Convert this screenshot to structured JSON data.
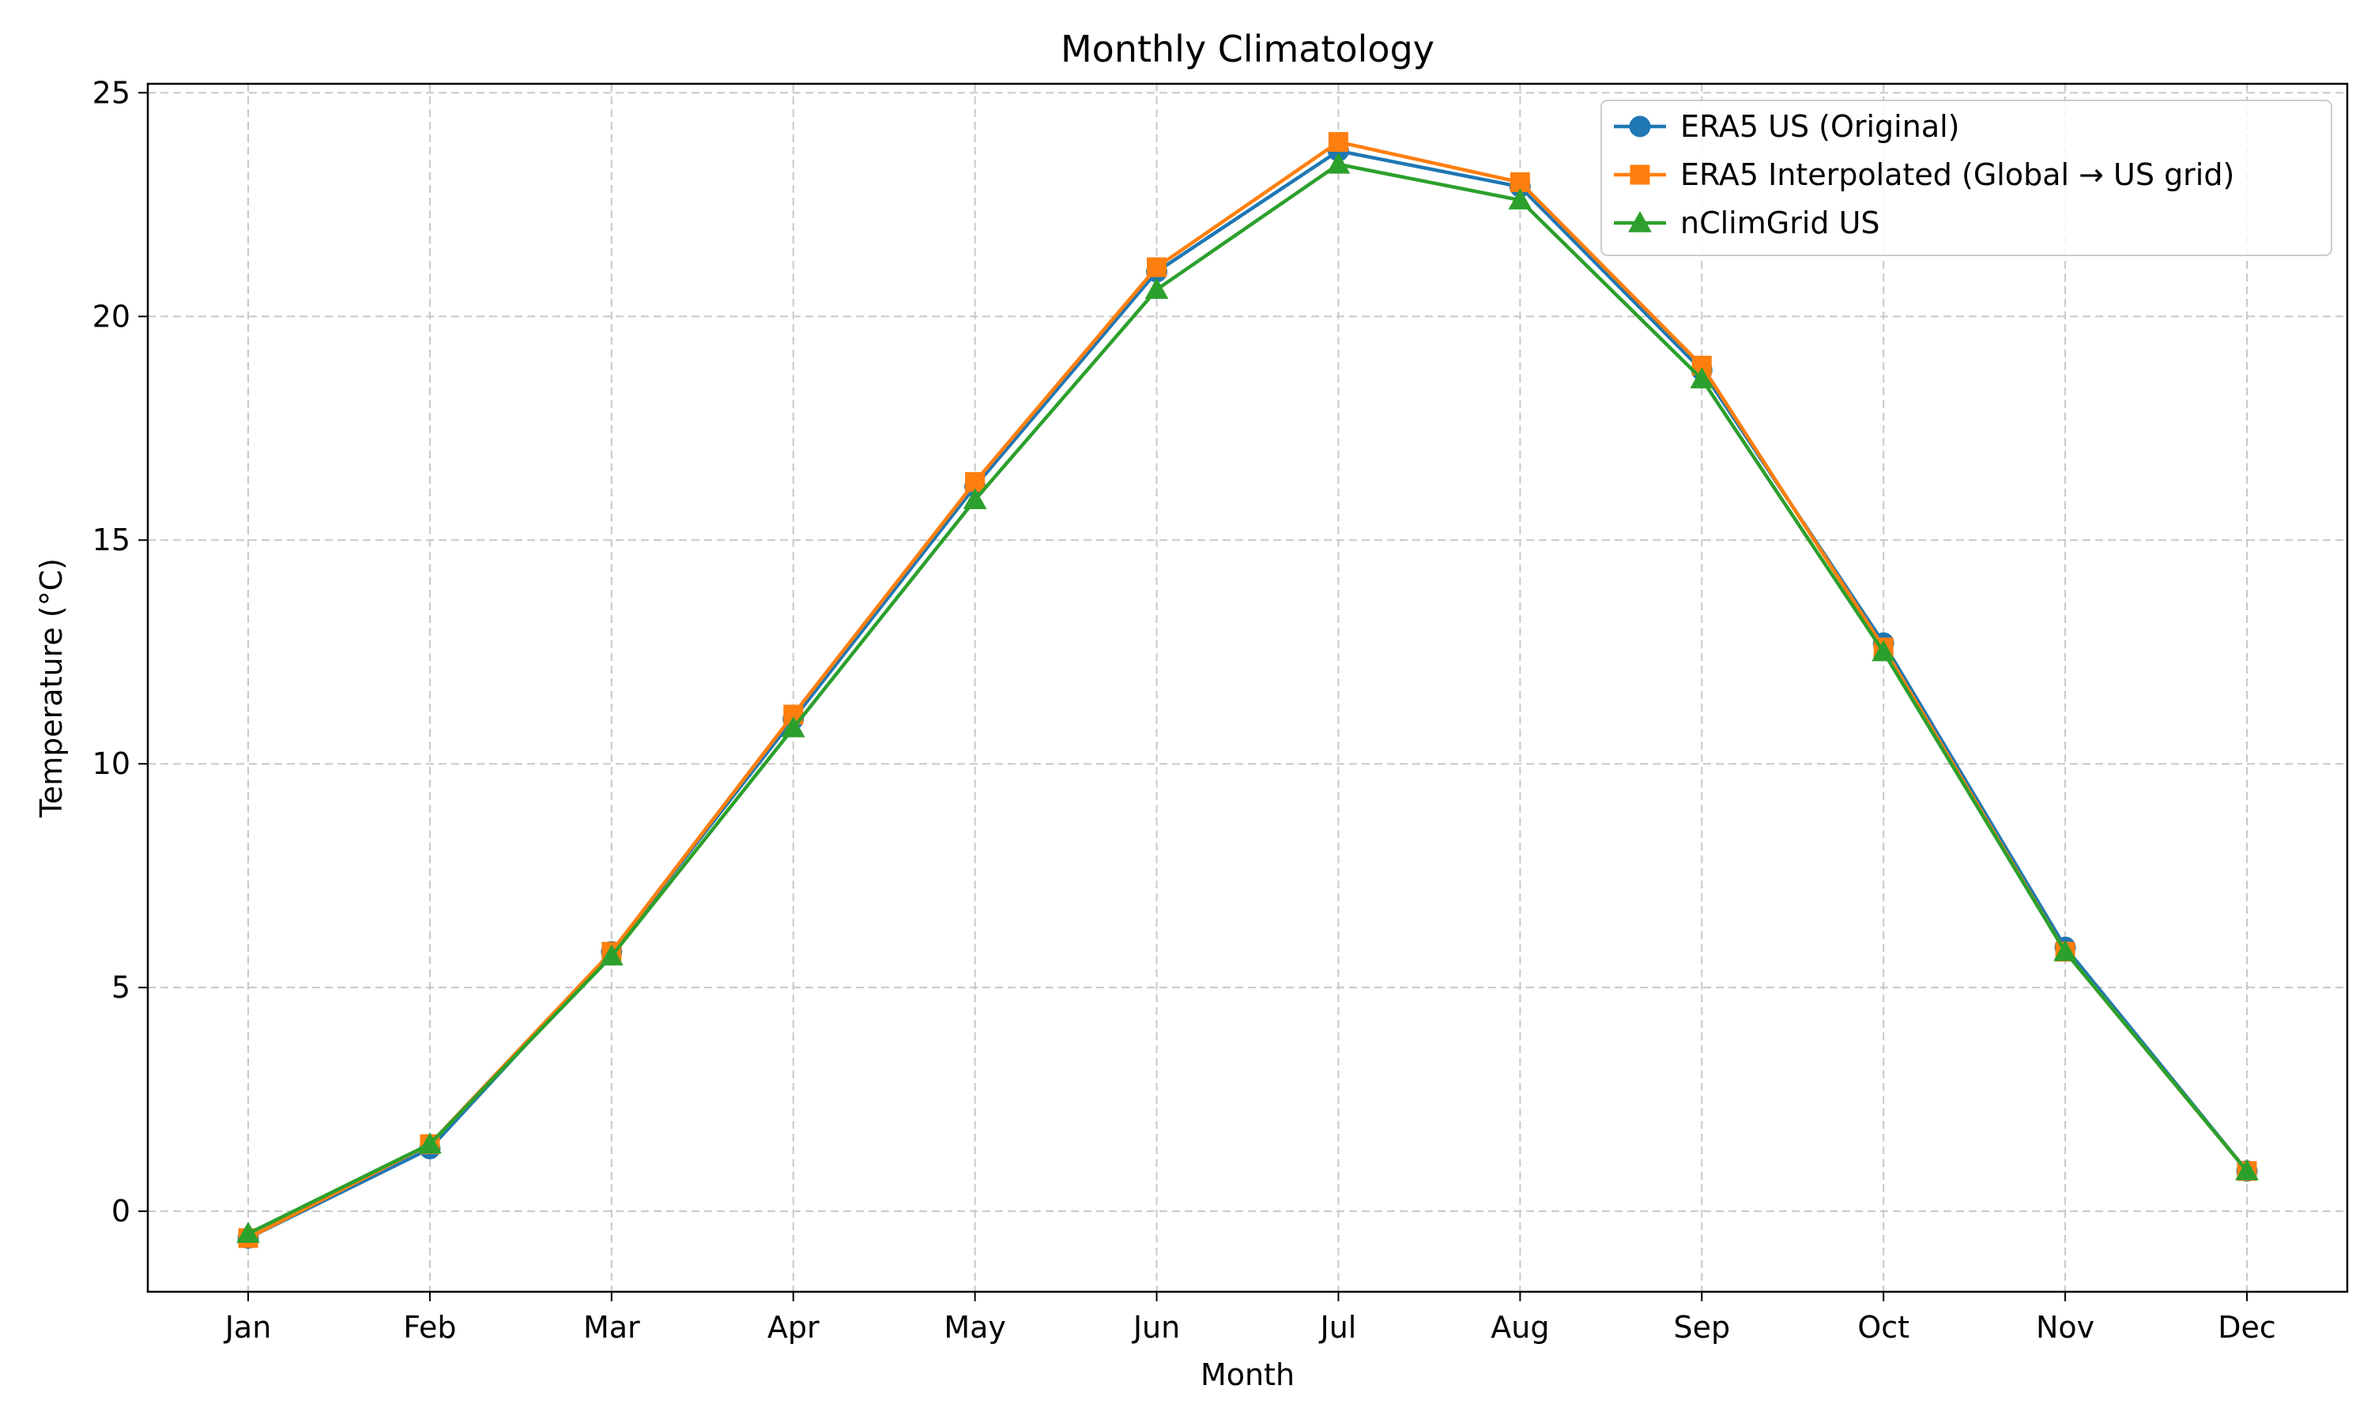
{
  "chart_data": {
    "type": "line",
    "title": "Monthly Climatology",
    "xlabel": "Month",
    "ylabel": "Temperature (°C)",
    "categories": [
      "Jan",
      "Feb",
      "Mar",
      "Apr",
      "May",
      "Jun",
      "Jul",
      "Aug",
      "Sep",
      "Oct",
      "Nov",
      "Dec"
    ],
    "ylim": [
      -1.8,
      25.2
    ],
    "yticks": [
      0,
      5,
      10,
      15,
      20,
      25
    ],
    "grid": true,
    "legend_position": "top-right",
    "series": [
      {
        "name": "ERA5 US (Original)",
        "color": "#1f77b4",
        "marker": "circle",
        "values": [
          -0.6,
          1.4,
          5.8,
          11.0,
          16.2,
          21.0,
          23.7,
          22.9,
          18.8,
          12.7,
          5.9,
          0.9
        ]
      },
      {
        "name": "ERA5 Interpolated (Global → US grid)",
        "color": "#ff7f0e",
        "marker": "square",
        "values": [
          -0.6,
          1.5,
          5.8,
          11.1,
          16.3,
          21.1,
          23.9,
          23.0,
          18.9,
          12.6,
          5.8,
          0.9
        ]
      },
      {
        "name": "nClimGrid US",
        "color": "#2ca02c",
        "marker": "triangle",
        "values": [
          -0.5,
          1.5,
          5.7,
          10.8,
          15.9,
          20.6,
          23.4,
          22.6,
          18.6,
          12.5,
          5.8,
          0.9
        ]
      }
    ]
  }
}
